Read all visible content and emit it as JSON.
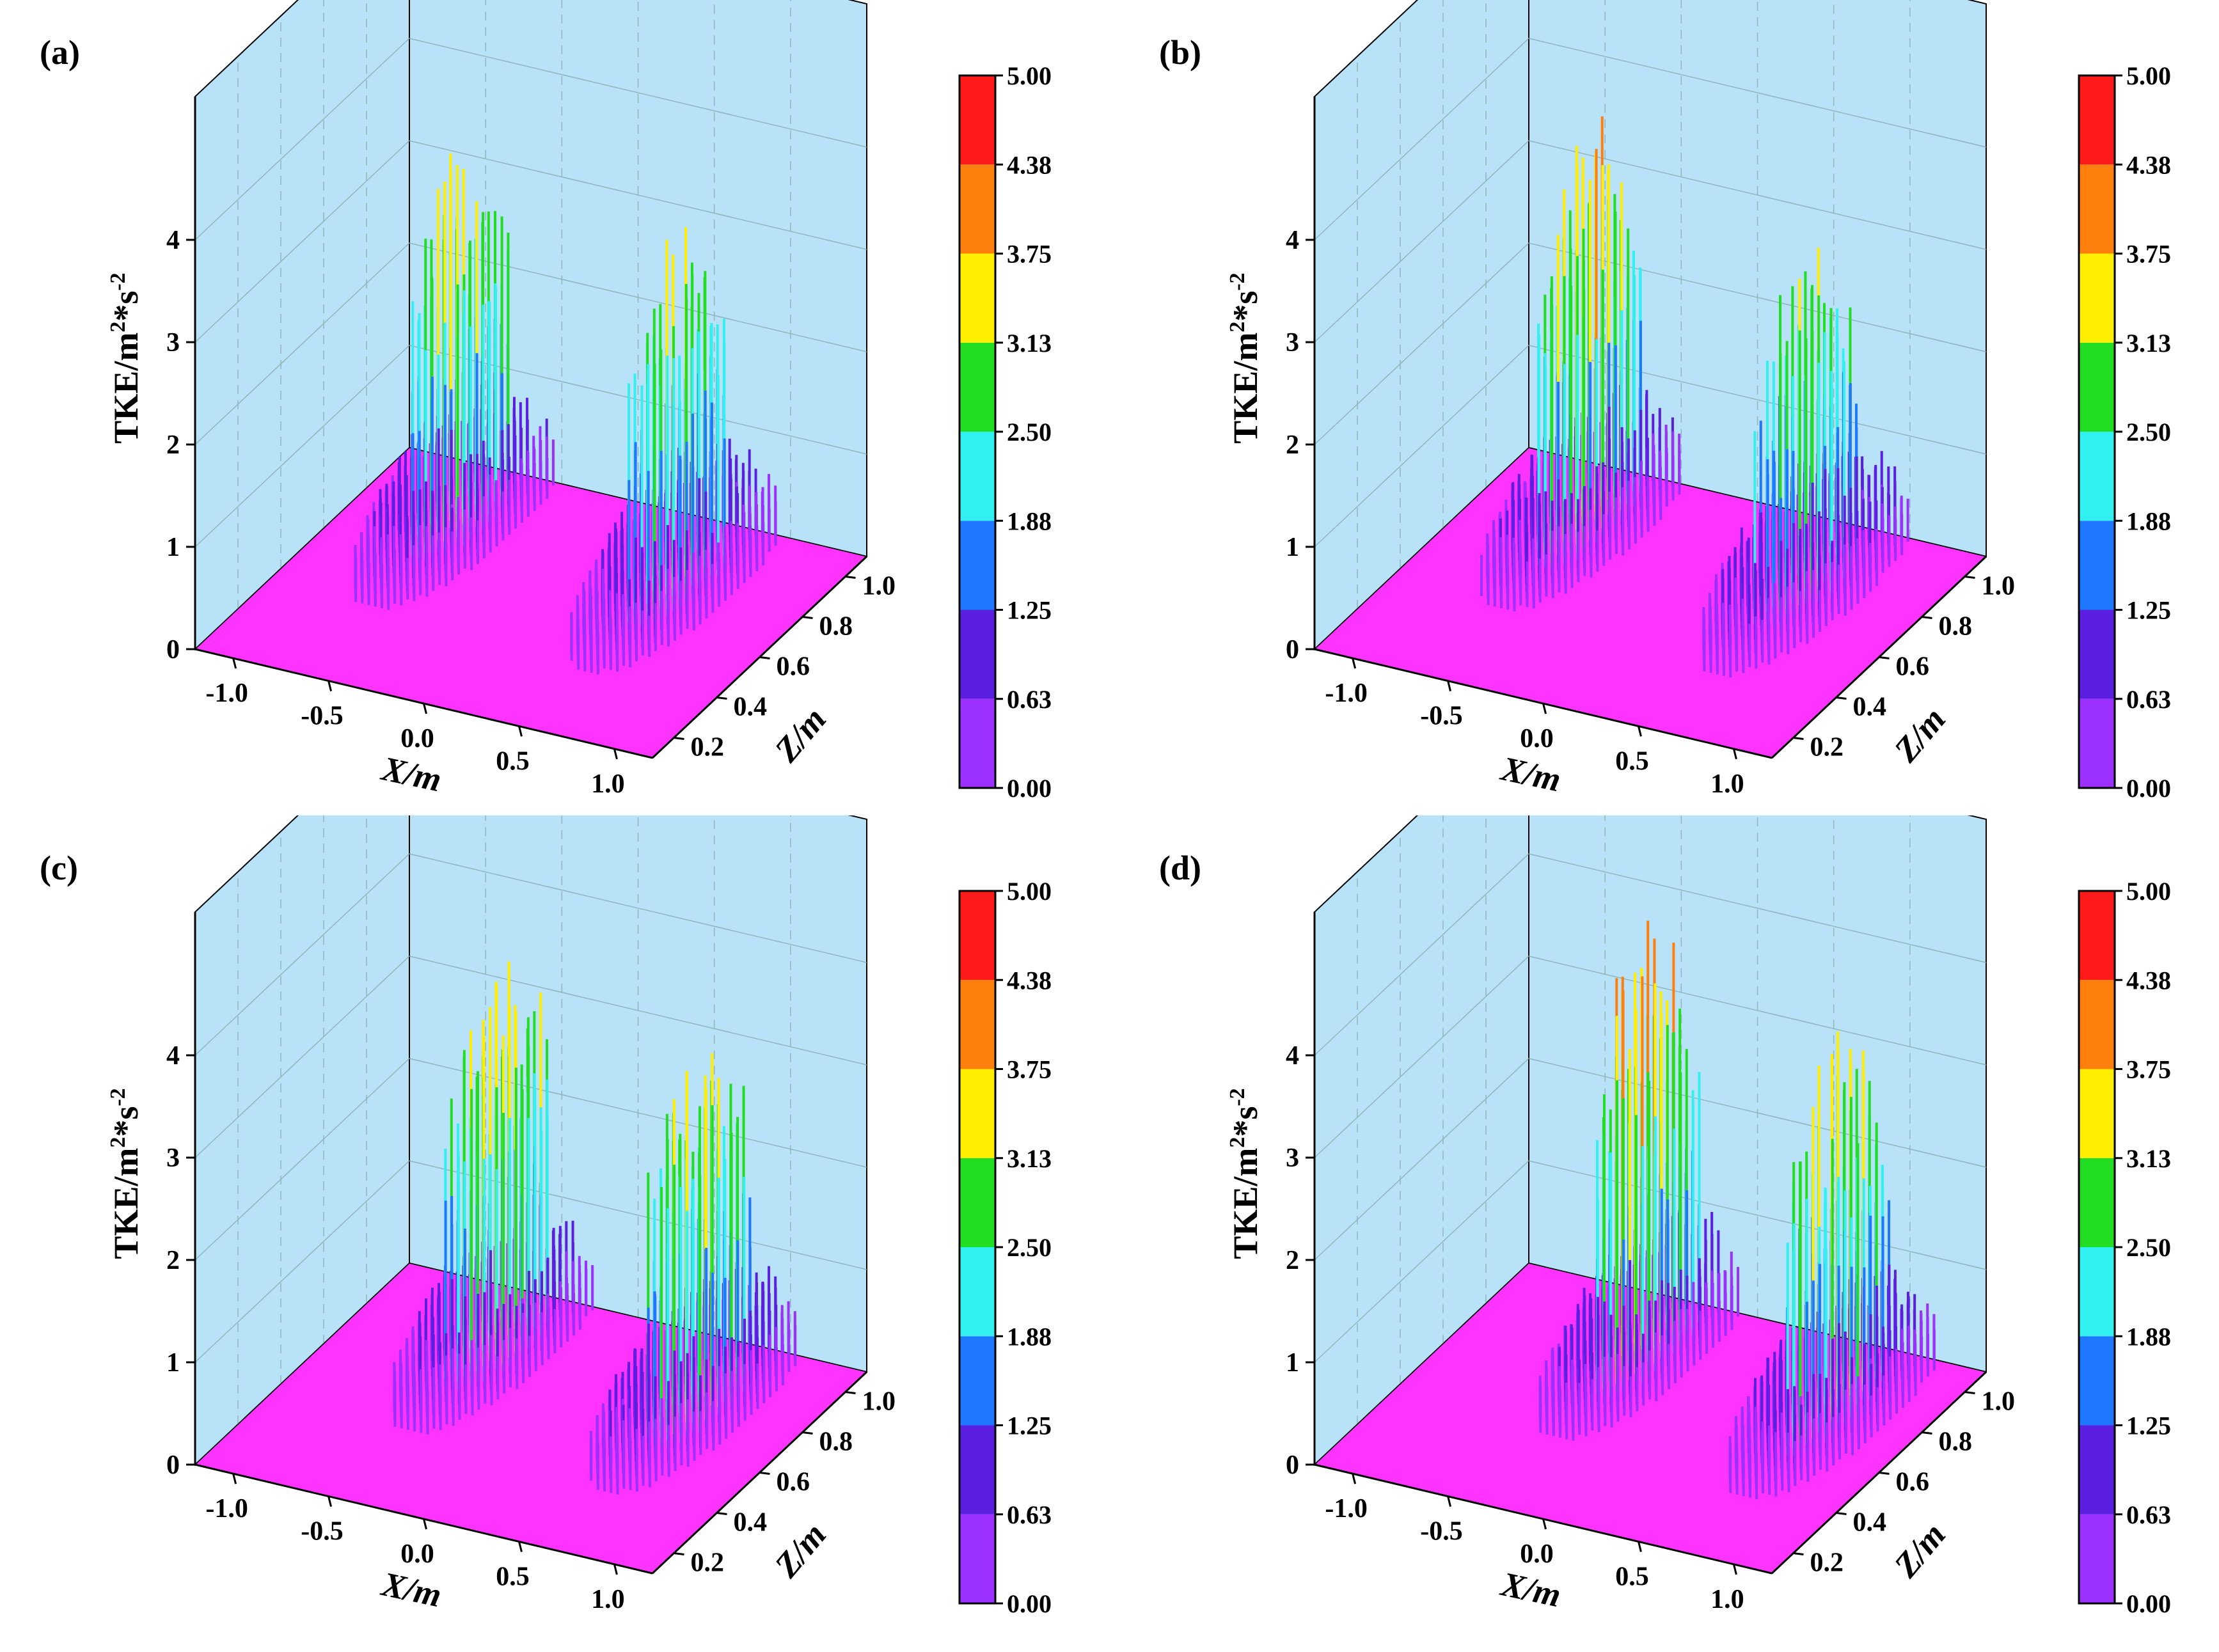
{
  "chart_data": [
    {
      "type": "surface3d",
      "label": "(a)",
      "xlabel": "X/m",
      "ylabel": "TKE/m",
      "ylabel_sup1": "2",
      "ylabel_mid": "*s",
      "ylabel_sup2": "-2",
      "zlabel": "Z/m",
      "x_ticks": [
        "-1.0",
        "-0.5",
        "0.0",
        "0.5",
        "1.0"
      ],
      "z_ticks": [
        "0.2",
        "0.4",
        "0.6",
        "0.8",
        "1.0"
      ],
      "y_ticks": [
        "0",
        "1",
        "2",
        "3",
        "4"
      ],
      "xlim": [
        -1.2,
        1.2
      ],
      "zlim": [
        0.1,
        1.1
      ],
      "ylim": [
        0,
        5
      ],
      "peaks": [
        {
          "x": -0.65,
          "z": 0.85,
          "max": 3.9
        },
        {
          "x": 0.55,
          "z": 0.8,
          "max": 3.6
        }
      ],
      "colorbar": {
        "ticks": [
          "5.00",
          "4.38",
          "3.75",
          "3.13",
          "2.50",
          "1.88",
          "1.25",
          "0.63",
          "0.00"
        ]
      }
    },
    {
      "type": "surface3d",
      "label": "(b)",
      "xlabel": "X/m",
      "ylabel": "TKE/m",
      "ylabel_sup1": "2",
      "ylabel_mid": "*s",
      "ylabel_sup2": "-2",
      "zlabel": "Z/m",
      "x_ticks": [
        "-1.0",
        "-0.5",
        "0.0",
        "0.5",
        "1.0"
      ],
      "z_ticks": [
        "0.2",
        "0.4",
        "0.6",
        "0.8",
        "1.0"
      ],
      "y_ticks": [
        "0",
        "1",
        "2",
        "3",
        "4"
      ],
      "xlim": [
        -1.2,
        1.2
      ],
      "zlim": [
        0.1,
        1.1
      ],
      "ylim": [
        0,
        5
      ],
      "peaks": [
        {
          "x": -0.6,
          "z": 0.85,
          "max": 4.2
        },
        {
          "x": 0.6,
          "z": 0.8,
          "max": 3.5
        }
      ],
      "colorbar": {
        "ticks": [
          "5.00",
          "4.38",
          "3.75",
          "3.13",
          "2.50",
          "1.88",
          "1.25",
          "0.63",
          "0.00"
        ]
      }
    },
    {
      "type": "surface3d",
      "label": "(c)",
      "xlabel": "X/m",
      "ylabel": "TKE/m",
      "ylabel_sup1": "2",
      "ylabel_mid": "*s",
      "ylabel_sup2": "-2",
      "zlabel": "Z/m",
      "x_ticks": [
        "-1.0",
        "-0.5",
        "0.0",
        "0.5",
        "1.0"
      ],
      "z_ticks": [
        "0.2",
        "0.4",
        "0.6",
        "0.8",
        "1.0"
      ],
      "y_ticks": [
        "0",
        "1",
        "2",
        "3",
        "4"
      ],
      "xlim": [
        -1.2,
        1.2
      ],
      "zlim": [
        0.1,
        1.1
      ],
      "ylim": [
        0,
        5
      ],
      "peaks": [
        {
          "x": -0.45,
          "z": 0.85,
          "max": 4.3
        },
        {
          "x": 0.65,
          "z": 0.8,
          "max": 4.1
        }
      ],
      "colorbar": {
        "ticks": [
          "5.00",
          "4.38",
          "3.75",
          "3.13",
          "2.50",
          "1.88",
          "1.25",
          "0.63",
          "0.00"
        ]
      }
    },
    {
      "type": "surface3d",
      "label": "(d)",
      "xlabel": "X/m",
      "ylabel": "TKE/m",
      "ylabel_sup1": "2",
      "ylabel_mid": "*s",
      "ylabel_sup2": "-2",
      "zlabel": "Z/m",
      "x_ticks": [
        "-1.0",
        "-0.5",
        "0.0",
        "0.5",
        "1.0"
      ],
      "z_ticks": [
        "0.2",
        "0.4",
        "0.6",
        "0.8",
        "1.0"
      ],
      "y_ticks": [
        "0",
        "1",
        "2",
        "3",
        "4"
      ],
      "xlim": [
        -1.2,
        1.2
      ],
      "zlim": [
        0.1,
        1.1
      ],
      "ylim": [
        0,
        5
      ],
      "peaks": [
        {
          "x": -0.3,
          "z": 0.85,
          "max": 4.6
        },
        {
          "x": 0.75,
          "z": 0.8,
          "max": 4.0
        }
      ],
      "colorbar": {
        "ticks": [
          "5.00",
          "4.38",
          "3.75",
          "3.13",
          "2.50",
          "1.88",
          "1.25",
          "0.63",
          "0.00"
        ]
      }
    }
  ],
  "colors": {
    "wall": "#b8e2f8",
    "floor": "#ff33ff",
    "levels": [
      "#9b30ff",
      "#5a1fe0",
      "#1e78ff",
      "#33f0f0",
      "#22dd22",
      "#ffee00",
      "#ff7f0e",
      "#ff1a1a"
    ]
  }
}
